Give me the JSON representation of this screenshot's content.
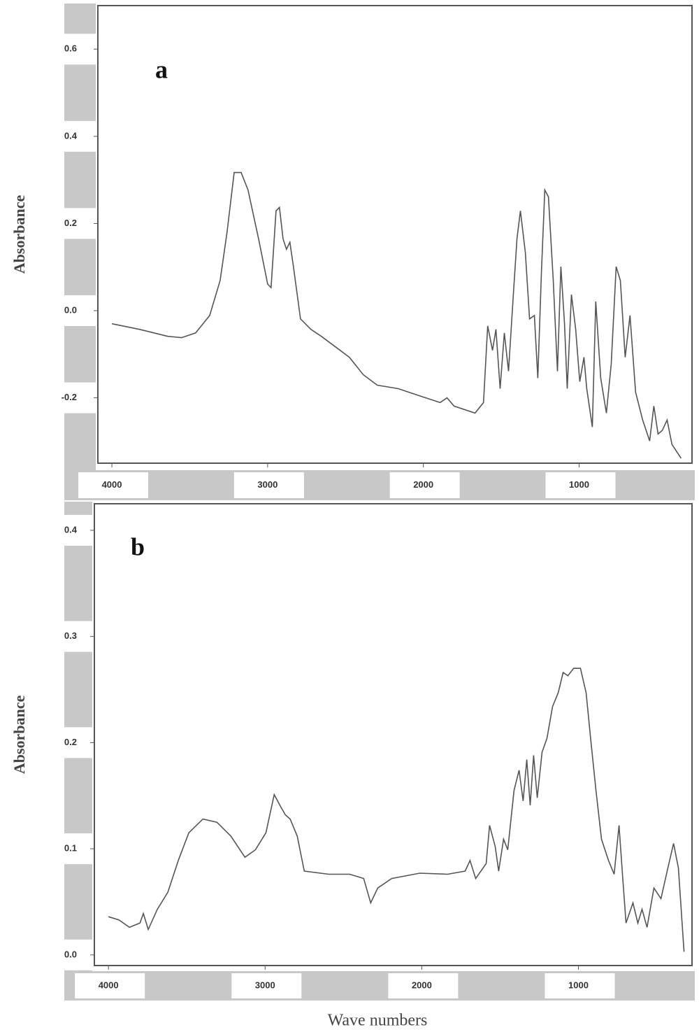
{
  "chart_data": [
    {
      "type": "line",
      "annotation": "a",
      "ylabel": "Absorbance",
      "x": [
        4000,
        3821,
        3641,
        3552,
        3462,
        3372,
        3305,
        3260,
        3215,
        3170,
        3126,
        3058,
        3000,
        2978,
        2946,
        2924,
        2901,
        2879,
        2857,
        2834,
        2789,
        2722,
        2655,
        2565,
        2475,
        2386,
        2296,
        2161,
        2027,
        1892,
        1848,
        1803,
        1668,
        1614,
        1587,
        1556,
        1534,
        1507,
        1480,
        1453,
        1422,
        1399,
        1377,
        1345,
        1318,
        1287,
        1265,
        1242,
        1220,
        1197,
        1166,
        1139,
        1117,
        1094,
        1076,
        1049,
        1022,
        996,
        969,
        951,
        915,
        893,
        861,
        825,
        794,
        762,
        735,
        704,
        673,
        637,
        592,
        547,
        520,
        493,
        466,
        435,
        404,
        345
      ],
      "series": [
        {
          "color": "#555555",
          "values": [
            -0.03,
            -0.043,
            -0.059,
            -0.062,
            -0.051,
            -0.011,
            0.069,
            0.181,
            0.317,
            0.317,
            0.277,
            0.165,
            0.061,
            0.053,
            0.229,
            0.237,
            0.165,
            0.141,
            0.157,
            0.101,
            -0.019,
            -0.043,
            -0.059,
            -0.083,
            -0.107,
            -0.147,
            -0.171,
            -0.179,
            -0.195,
            -0.211,
            -0.2,
            -0.219,
            -0.235,
            -0.211,
            -0.035,
            -0.091,
            -0.043,
            -0.179,
            -0.051,
            -0.139,
            0.037,
            0.165,
            0.229,
            0.133,
            -0.019,
            -0.011,
            -0.155,
            0.085,
            0.277,
            0.261,
            0.069,
            -0.139,
            0.101,
            -0.027,
            -0.179,
            0.037,
            -0.043,
            -0.163,
            -0.107,
            -0.179,
            -0.267,
            0.021,
            -0.155,
            -0.235,
            -0.123,
            0.101,
            0.069,
            -0.107,
            -0.011,
            -0.187,
            -0.251,
            -0.299,
            -0.219,
            -0.283,
            -0.275,
            -0.251,
            -0.307,
            -0.339
          ]
        }
      ],
      "xlim": [
        4090,
        275
      ],
      "ylim": [
        -0.35,
        0.7
      ],
      "xticks": [
        4000,
        3000,
        2000,
        1000
      ],
      "yticks": [
        0.6,
        0.4,
        0.2,
        {
          "value": 0,
          "label": "0.0"
        },
        -0.2
      ]
    },
    {
      "type": "line",
      "annotation": "b",
      "ylabel": "Absorbance",
      "xlabel": "Wave numbers",
      "x": [
        4000,
        3933,
        3866,
        3799,
        3777,
        3746,
        3688,
        3621,
        3554,
        3487,
        3397,
        3308,
        3219,
        3129,
        3062,
        2995,
        2942,
        2906,
        2871,
        2840,
        2795,
        2750,
        2594,
        2460,
        2371,
        2326,
        2281,
        2192,
        2013,
        1835,
        1723,
        1692,
        1656,
        1589,
        1567,
        1531,
        1509,
        1478,
        1451,
        1411,
        1379,
        1353,
        1330,
        1308,
        1286,
        1263,
        1232,
        1201,
        1165,
        1129,
        1098,
        1067,
        1031,
        987,
        951,
        920,
        888,
        853,
        808,
        772,
        741,
        719,
        696,
        652,
        621,
        594,
        562,
        518,
        473,
        429,
        393,
        362,
        326
      ],
      "series": [
        {
          "color": "#555555",
          "values": [
            0.036,
            0.033,
            0.026,
            0.03,
            0.039,
            0.024,
            0.043,
            0.059,
            0.089,
            0.115,
            0.128,
            0.125,
            0.112,
            0.092,
            0.099,
            0.115,
            0.151,
            0.141,
            0.132,
            0.128,
            0.112,
            0.079,
            0.076,
            0.076,
            0.072,
            0.049,
            0.063,
            0.072,
            0.077,
            0.076,
            0.079,
            0.089,
            0.072,
            0.086,
            0.122,
            0.102,
            0.079,
            0.109,
            0.099,
            0.155,
            0.174,
            0.145,
            0.184,
            0.141,
            0.188,
            0.148,
            0.191,
            0.204,
            0.234,
            0.247,
            0.266,
            0.263,
            0.27,
            0.27,
            0.247,
            0.201,
            0.155,
            0.109,
            0.089,
            0.076,
            0.122,
            0.076,
            0.03,
            0.049,
            0.03,
            0.043,
            0.026,
            0.063,
            0.053,
            0.082,
            0.105,
            0.082,
            0.003
          ]
        }
      ],
      "xlim": [
        4090,
        275
      ],
      "ylim": [
        -0.01,
        0.425
      ],
      "xticks": [
        4000,
        3000,
        2000,
        1000
      ],
      "yticks": [
        0.4,
        0.3,
        0.2,
        0.1,
        {
          "value": 0,
          "label": "0.0"
        }
      ]
    }
  ]
}
